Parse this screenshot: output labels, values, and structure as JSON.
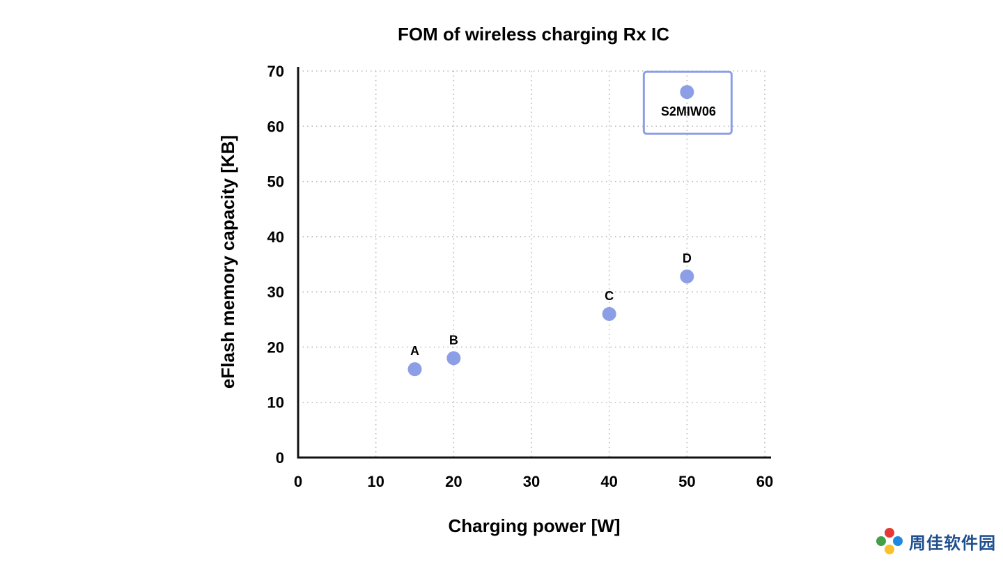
{
  "chart_data": {
    "type": "scatter",
    "title": "FOM of wireless charging Rx IC",
    "xlabel": "Charging power [W]",
    "ylabel": "eFlash memory capacity [KB]",
    "xlim": [
      0,
      60
    ],
    "ylim": [
      0,
      70
    ],
    "xticks": [
      0,
      10,
      20,
      30,
      40,
      50,
      60
    ],
    "yticks": [
      0,
      10,
      20,
      30,
      40,
      50,
      60,
      70
    ],
    "grid": true,
    "point_color": "#8c9fe6",
    "highlight_color": "#8c9fe6",
    "points": [
      {
        "label": "A",
        "x": 15,
        "y": 16
      },
      {
        "label": "B",
        "x": 20,
        "y": 18
      },
      {
        "label": "C",
        "x": 40,
        "y": 26
      },
      {
        "label": "D",
        "x": 50,
        "y": 32.8
      },
      {
        "label": "S2MIW06",
        "x": 50,
        "y": 66.2,
        "highlight": true
      }
    ]
  },
  "watermark": {
    "text": "周佳软件园",
    "icon": "colorful-star-logo-icon"
  }
}
